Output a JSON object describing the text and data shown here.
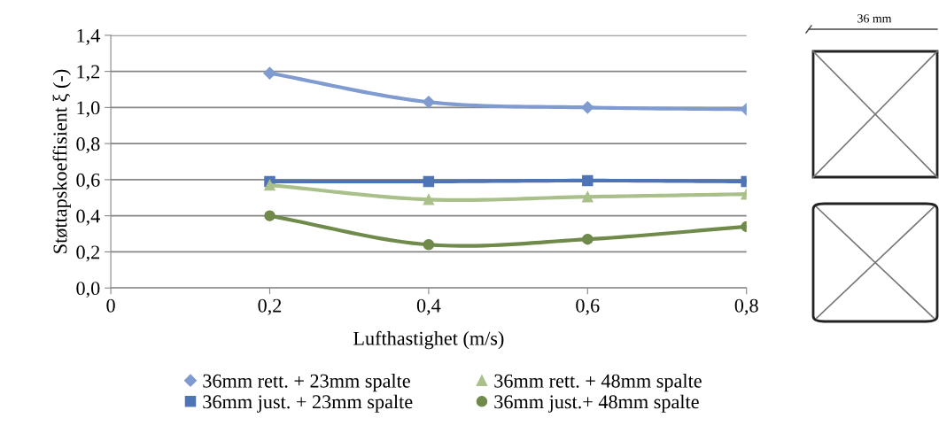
{
  "chart_data": {
    "type": "line",
    "xlabel": "Lufthastighet (m/s)",
    "ylabel": "Støttapskoeffisient ξ (-)",
    "x": [
      0.2,
      0.4,
      0.6,
      0.8
    ],
    "series": [
      {
        "name": "36mm rett. + 23mm spalte",
        "color": "#7f9bd0",
        "marker": "diamond",
        "values": [
          1.19,
          1.03,
          1.0,
          0.99
        ]
      },
      {
        "name": "36mm just. + 23mm spalte",
        "color": "#4f74b5",
        "marker": "square",
        "values": [
          0.59,
          0.59,
          0.595,
          0.59
        ]
      },
      {
        "name": "36mm rett. + 48mm spalte",
        "color": "#a9c08b",
        "marker": "triangle",
        "values": [
          0.57,
          0.49,
          0.505,
          0.52
        ]
      },
      {
        "name": "36mm just.+ 48mm spalte",
        "color": "#6f8a4a",
        "marker": "circle",
        "values": [
          0.4,
          0.24,
          0.27,
          0.34
        ]
      }
    ],
    "xlim": [
      0,
      0.8
    ],
    "xticks": [
      0,
      {
        "value": 0.2,
        "label": "0,2"
      },
      {
        "value": 0.4,
        "label": "0,4"
      },
      {
        "value": 0.6,
        "label": "0,6"
      },
      {
        "value": 0.8,
        "label": "0,8"
      }
    ],
    "ylim": [
      0,
      1.4
    ],
    "yticks": [
      {
        "value": 0,
        "label": "0,0"
      },
      {
        "value": 0.2,
        "label": "0,2"
      },
      {
        "value": 0.4,
        "label": "0,4"
      },
      {
        "value": 0.6,
        "label": "0,6"
      },
      {
        "value": 0.8,
        "label": "0,8"
      },
      {
        "value": 1.0,
        "label": "1,0"
      },
      {
        "value": 1.2,
        "label": "1,2"
      },
      {
        "value": 1.4,
        "label": "1,4"
      }
    ],
    "grid": "y",
    "legend": "bottom",
    "line_style": "solid",
    "annotations": [
      "36 mm"
    ]
  }
}
